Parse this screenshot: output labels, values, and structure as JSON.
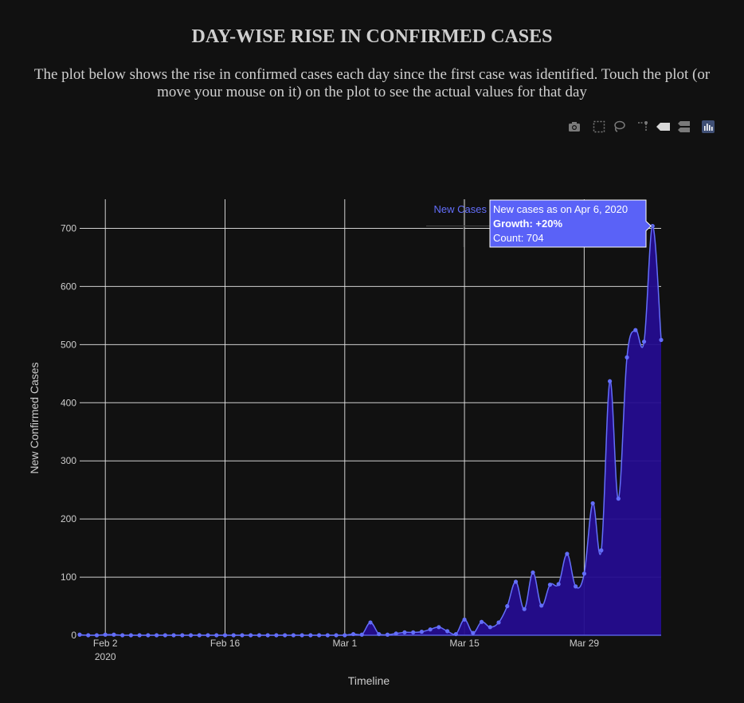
{
  "page": {
    "title": "DAY-WISE RISE IN CONFIRMED CASES",
    "subtitle": "The plot below shows the rise in confirmed cases each day since the first case was identified. Touch the plot (or move your mouse on it) on the plot to see the actual values for that day"
  },
  "modebar": {
    "buttons": [
      {
        "name": "camera-icon"
      },
      {
        "name": "box-select-icon"
      },
      {
        "name": "lasso-select-icon"
      },
      {
        "name": "spike-lines-icon"
      },
      {
        "name": "hover-closest-icon"
      },
      {
        "name": "hover-compare-icon"
      },
      {
        "name": "plotly-logo-icon"
      }
    ]
  },
  "colors": {
    "background": "#111111",
    "line": "#636efa",
    "fill": "#250d8f",
    "grid": "#e6e6e6",
    "text": "#cccccc",
    "tooltip_bg": "#5a62f7"
  },
  "chart_data": {
    "type": "area",
    "xlabel": "Timeline",
    "ylabel": "New Confirmed Cases",
    "ylim": [
      0,
      750
    ],
    "xlim": [
      "2020-01-30",
      "2020-04-07"
    ],
    "yticks": [
      0,
      100,
      200,
      300,
      400,
      500,
      600,
      700
    ],
    "xticks": [
      {
        "date": "2020-02-02",
        "label": "Feb 2",
        "sublabel": "2020"
      },
      {
        "date": "2020-02-16",
        "label": "Feb 16",
        "sublabel": ""
      },
      {
        "date": "2020-03-01",
        "label": "Mar 1",
        "sublabel": ""
      },
      {
        "date": "2020-03-15",
        "label": "Mar 15",
        "sublabel": ""
      },
      {
        "date": "2020-03-29",
        "label": "Mar 29",
        "sublabel": ""
      }
    ],
    "grid": true,
    "series": [
      {
        "name": "New Cases",
        "x": [
          "2020-01-30",
          "2020-01-31",
          "2020-02-01",
          "2020-02-02",
          "2020-02-03",
          "2020-02-04",
          "2020-02-05",
          "2020-02-06",
          "2020-02-07",
          "2020-02-08",
          "2020-02-09",
          "2020-02-10",
          "2020-02-11",
          "2020-02-12",
          "2020-02-13",
          "2020-02-14",
          "2020-02-15",
          "2020-02-16",
          "2020-02-17",
          "2020-02-18",
          "2020-02-19",
          "2020-02-20",
          "2020-02-21",
          "2020-02-22",
          "2020-02-23",
          "2020-02-24",
          "2020-02-25",
          "2020-02-26",
          "2020-02-27",
          "2020-02-28",
          "2020-02-29",
          "2020-03-01",
          "2020-03-02",
          "2020-03-03",
          "2020-03-04",
          "2020-03-05",
          "2020-03-06",
          "2020-03-07",
          "2020-03-08",
          "2020-03-09",
          "2020-03-10",
          "2020-03-11",
          "2020-03-12",
          "2020-03-13",
          "2020-03-14",
          "2020-03-15",
          "2020-03-16",
          "2020-03-17",
          "2020-03-18",
          "2020-03-19",
          "2020-03-20",
          "2020-03-21",
          "2020-03-22",
          "2020-03-23",
          "2020-03-24",
          "2020-03-25",
          "2020-03-26",
          "2020-03-27",
          "2020-03-28",
          "2020-03-29",
          "2020-03-30",
          "2020-03-31",
          "2020-04-01",
          "2020-04-02",
          "2020-04-03",
          "2020-04-04",
          "2020-04-05",
          "2020-04-06",
          "2020-04-07"
        ],
        "y": [
          1,
          0,
          0,
          1,
          1,
          0,
          0,
          0,
          0,
          0,
          0,
          0,
          0,
          0,
          0,
          0,
          0,
          0,
          0,
          0,
          0,
          0,
          0,
          0,
          0,
          0,
          0,
          0,
          0,
          0,
          0,
          0,
          2,
          1,
          22,
          2,
          1,
          3,
          5,
          5,
          6,
          10,
          14,
          7,
          2,
          27,
          4,
          23,
          14,
          22,
          50,
          92,
          45,
          108,
          51,
          87,
          88,
          140,
          84,
          106,
          227,
          146,
          437,
          235,
          478,
          525,
          505,
          704,
          508
        ]
      }
    ],
    "hover": {
      "series_label": "New Cases",
      "line1": "New cases as on Apr 6, 2020",
      "line2": "Growth: +20%",
      "line3": "Count: 704",
      "x": "2020-04-06",
      "y": 704
    }
  }
}
